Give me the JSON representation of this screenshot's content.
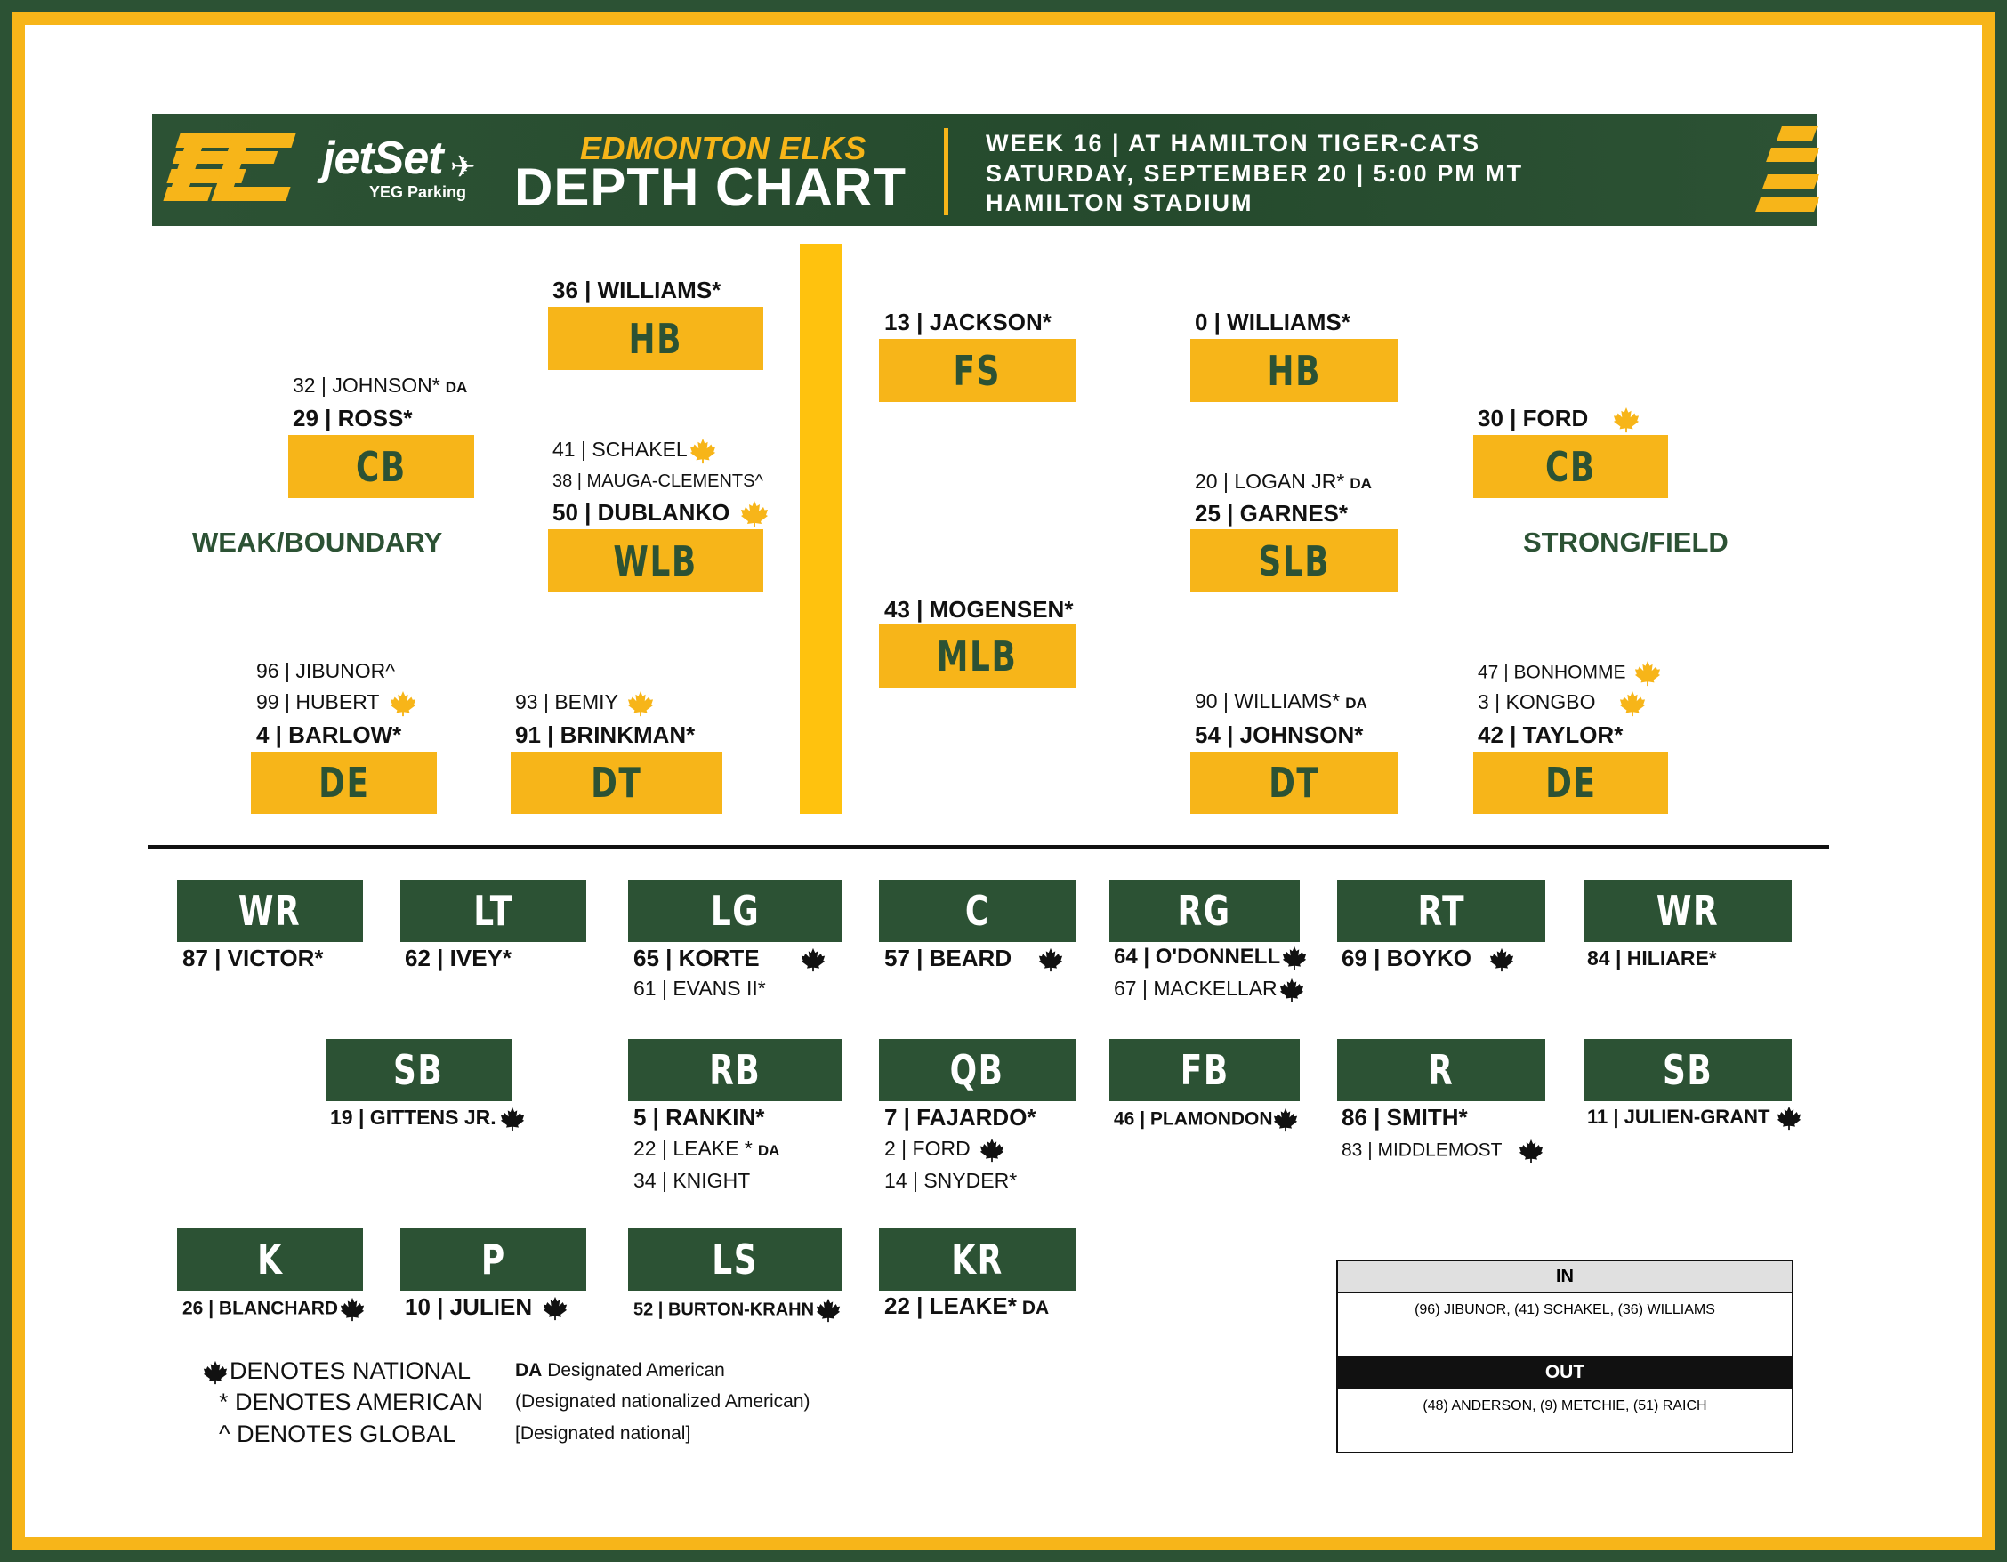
{
  "colors": {
    "green": "#2c5234",
    "gold": "#f7b519",
    "black": "#111111"
  },
  "icons": {
    "national": "maple-leaf-icon"
  },
  "header": {
    "logo": "EE",
    "sponsor_line1": "jetSet",
    "sponsor_line2": "YEG Parking",
    "title_top": "EDMONTON ELKS",
    "title_main": "DEPTH CHART",
    "line1": "WEEK 16 | AT HAMILTON TIGER-CATS",
    "line2": "SATURDAY, SEPTEMBER 20 | 5:00 PM MT",
    "line3": "HAMILTON STADIUM"
  },
  "defense": {
    "side_left": "WEAK/BOUNDARY",
    "side_right": "STRONG/FIELD",
    "hb_left": {
      "label": "HB",
      "starter": "36 | WILLIAMS*"
    },
    "fs": {
      "label": "FS",
      "starter": "13 | JACKSON*"
    },
    "hb_right": {
      "label": "HB",
      "starter": "0 | WILLIAMS*"
    },
    "cb_left": {
      "label": "CB",
      "backup1": "32 | JOHNSON*",
      "backup1_tag": "DA",
      "starter": "29 | ROSS*"
    },
    "cb_right": {
      "label": "CB",
      "starter": "30 | FORD"
    },
    "wlb": {
      "label": "WLB",
      "backup1": "41 | SCHAKEL",
      "backup2": "38 | MAUGA-CLEMENTS^",
      "starter": "50 | DUBLANKO"
    },
    "slb": {
      "label": "SLB",
      "backup1": "20 | LOGAN JR*",
      "backup1_tag": "DA",
      "starter": "25 | GARNES*"
    },
    "mlb": {
      "label": "MLB",
      "starter": "43 | MOGENSEN*"
    },
    "de_left": {
      "label": "DE",
      "backup1": "96 | JIBUNOR^",
      "backup2": "99 | HUBERT",
      "starter": "4 | BARLOW*"
    },
    "dt_left": {
      "label": "DT",
      "backup1": "93 | BEMIY",
      "starter": "91 | BRINKMAN*"
    },
    "dt_right": {
      "label": "DT",
      "backup1": "90 | WILLIAMS*",
      "backup1_tag": "DA",
      "starter": "54 | JOHNSON*"
    },
    "de_right": {
      "label": "DE",
      "backup1": "47 | BONHOMME",
      "backup2": "3 | KONGBO",
      "starter": "42 | TAYLOR*"
    }
  },
  "offense": {
    "wr_left": {
      "label": "WR",
      "starter": "87 | VICTOR*"
    },
    "lt": {
      "label": "LT",
      "starter": "62 | IVEY*"
    },
    "lg": {
      "label": "LG",
      "starter": "65 | KORTE",
      "backup1": "61 | EVANS II*"
    },
    "c": {
      "label": "C",
      "starter": "57 | BEARD"
    },
    "rg": {
      "label": "RG",
      "starter": "64 | O'DONNELL",
      "backup1": "67 | MACKELLAR"
    },
    "rt": {
      "label": "RT",
      "starter": "69 | BOYKO"
    },
    "wr_right": {
      "label": "WR",
      "starter": "84 | HILIARE*"
    },
    "sb_left": {
      "label": "SB",
      "starter": "19 | GITTENS JR."
    },
    "rb": {
      "label": "RB",
      "starter": "5 | RANKIN*",
      "backup1": "22 | LEAKE *",
      "backup1_tag": "DA",
      "backup2": "34 | KNIGHT"
    },
    "qb": {
      "label": "QB",
      "starter": "7 | FAJARDO*",
      "backup1": "2 | FORD",
      "backup2": "14 | SNYDER*"
    },
    "fb": {
      "label": "FB",
      "starter": "46 | PLAMONDON"
    },
    "r": {
      "label": "R",
      "starter": "86 | SMITH*",
      "backup1": "83 | MIDDLEMOST"
    },
    "sb_right": {
      "label": "SB",
      "starter": "11 | JULIEN-GRANT"
    }
  },
  "special": {
    "k": {
      "label": "K",
      "starter": "26 | BLANCHARD"
    },
    "p": {
      "label": "P",
      "starter": "10 | JULIEN"
    },
    "ls": {
      "label": "LS",
      "starter": "52 | BURTON-KRAHN"
    },
    "kr": {
      "label": "KR",
      "starter": "22 | LEAKE*",
      "tag": "DA"
    }
  },
  "legend": {
    "national": "DENOTES NATIONAL",
    "american": "* DENOTES AMERICAN",
    "global": "^ DENOTES GLOBAL",
    "da_abbr": "DA",
    "da_text": "Designated American",
    "dna": "(Designated nationalized American)",
    "dn": "[Designated national]"
  },
  "roster_moves": {
    "in_label": "IN",
    "in_list": "(96) JIBUNOR, (41) SCHAKEL, (36) WILLIAMS",
    "out_label": "OUT",
    "out_list": "(48) ANDERSON, (9) METCHIE, (51) RAICH"
  }
}
